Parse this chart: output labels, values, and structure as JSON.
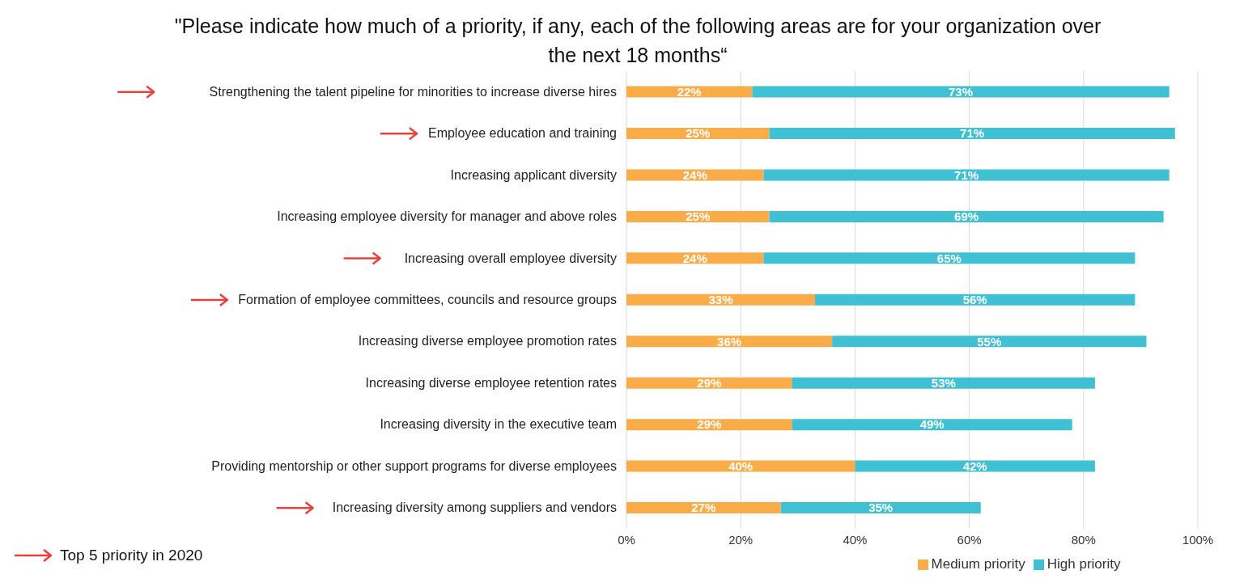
{
  "chart_data": {
    "type": "bar",
    "orientation": "horizontal",
    "stacked": true,
    "title": "\"Please indicate how much of a priority, if any, each of the following areas are for your organization over the next 18 months“",
    "categories": [
      "Strengthening the talent pipeline for minorities to increase diverse hires",
      "Employee education and training",
      "Increasing applicant diversity",
      "Increasing employee diversity for manager and above roles",
      "Increasing overall employee diversity",
      "Formation of employee committees, councils and resource groups",
      "Increasing diverse employee promotion rates",
      "Increasing diverse employee retention rates",
      "Increasing diversity in the executive team",
      "Providing mentorship or other support programs for diverse employees",
      "Increasing diversity among suppliers and vendors"
    ],
    "series": [
      {
        "name": "Medium priority",
        "color": "#f9ac48",
        "values": [
          22,
          25,
          24,
          25,
          24,
          33,
          36,
          29,
          29,
          40,
          27
        ],
        "value_labels": [
          "22%",
          "25%",
          "24%",
          "25%",
          "24%",
          "33%",
          "36%",
          "29%",
          "29%",
          "40%",
          "27%"
        ]
      },
      {
        "name": "High priority",
        "color": "#3fc1d3",
        "values": [
          73,
          71,
          71,
          69,
          65,
          56,
          55,
          53,
          49,
          42,
          35
        ],
        "value_labels": [
          "73%",
          "71%",
          "71%",
          "69%",
          "65%",
          "56%",
          "55%",
          "53%",
          "49%",
          "42%",
          "35%"
        ]
      }
    ],
    "xlim": [
      0,
      100
    ],
    "xticks": [
      {
        "value": 0,
        "label": "0%"
      },
      {
        "value": 20,
        "label": "20%"
      },
      {
        "value": 40,
        "label": "40%"
      },
      {
        "value": 60,
        "label": "60%"
      },
      {
        "value": 80,
        "label": "80%"
      },
      {
        "value": 100,
        "label": "100%"
      }
    ],
    "grid": "x",
    "legend": "bottom",
    "annotations": [
      "Top 5 priority in 2020"
    ]
  }
}
